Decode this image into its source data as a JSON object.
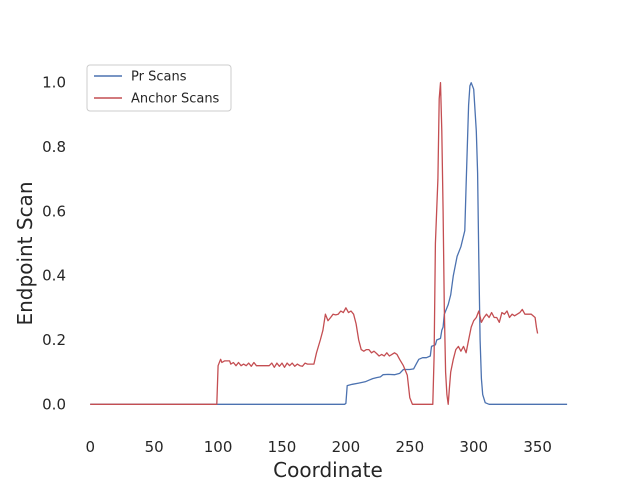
{
  "chart_data": {
    "type": "line",
    "title": "",
    "xlabel": "Coordinate",
    "ylabel": "Endpoint Scan",
    "xlim": [
      -8,
      380
    ],
    "ylim": [
      -0.08,
      1.08
    ],
    "x_ticks": [
      0,
      50,
      100,
      150,
      200,
      250,
      300,
      350
    ],
    "y_ticks": [
      0.0,
      0.2,
      0.4,
      0.6,
      0.8,
      1.0
    ],
    "grid": false,
    "legend_position": "top-left",
    "series": [
      {
        "name": "Pr Scans",
        "color": "#4c72b0",
        "points": [
          [
            0,
            0
          ],
          [
            199,
            0
          ],
          [
            200,
            0.003
          ],
          [
            201,
            0.058
          ],
          [
            205,
            0.062
          ],
          [
            210,
            0.066
          ],
          [
            215,
            0.07
          ],
          [
            218,
            0.075
          ],
          [
            221,
            0.08
          ],
          [
            224,
            0.083
          ],
          [
            227,
            0.085
          ],
          [
            229,
            0.092
          ],
          [
            233,
            0.093
          ],
          [
            238,
            0.092
          ],
          [
            242,
            0.096
          ],
          [
            245,
            0.108
          ],
          [
            250,
            0.108
          ],
          [
            253,
            0.11
          ],
          [
            255,
            0.125
          ],
          [
            257,
            0.14
          ],
          [
            260,
            0.145
          ],
          [
            263,
            0.145
          ],
          [
            266,
            0.15
          ],
          [
            267,
            0.18
          ],
          [
            270,
            0.185
          ],
          [
            271,
            0.2
          ],
          [
            274,
            0.205
          ],
          [
            275,
            0.23
          ],
          [
            276,
            0.24
          ],
          [
            277,
            0.28
          ],
          [
            280,
            0.31
          ],
          [
            282,
            0.34
          ],
          [
            284,
            0.4
          ],
          [
            287,
            0.46
          ],
          [
            290,
            0.49
          ],
          [
            293,
            0.54
          ],
          [
            294,
            0.68
          ],
          [
            295,
            0.8
          ],
          [
            296,
            0.93
          ],
          [
            297,
            0.99
          ],
          [
            298,
            1.0
          ],
          [
            300,
            0.98
          ],
          [
            302,
            0.85
          ],
          [
            303,
            0.72
          ],
          [
            304,
            0.45
          ],
          [
            305,
            0.2
          ],
          [
            306,
            0.08
          ],
          [
            307,
            0.03
          ],
          [
            309,
            0.005
          ],
          [
            312,
            0
          ],
          [
            373,
            0
          ]
        ]
      },
      {
        "name": "Anchor Scans",
        "color": "#c44e52",
        "points": [
          [
            0,
            0
          ],
          [
            99,
            0
          ],
          [
            100,
            0.12
          ],
          [
            102,
            0.14
          ],
          [
            103,
            0.13
          ],
          [
            105,
            0.135
          ],
          [
            109,
            0.135
          ],
          [
            110,
            0.125
          ],
          [
            112,
            0.13
          ],
          [
            114,
            0.12
          ],
          [
            116,
            0.13
          ],
          [
            118,
            0.12
          ],
          [
            120,
            0.125
          ],
          [
            122,
            0.12
          ],
          [
            124,
            0.128
          ],
          [
            126,
            0.118
          ],
          [
            128,
            0.13
          ],
          [
            130,
            0.12
          ],
          [
            135,
            0.12
          ],
          [
            140,
            0.12
          ],
          [
            142,
            0.128
          ],
          [
            144,
            0.115
          ],
          [
            146,
            0.128
          ],
          [
            148,
            0.118
          ],
          [
            150,
            0.128
          ],
          [
            152,
            0.115
          ],
          [
            154,
            0.128
          ],
          [
            156,
            0.12
          ],
          [
            158,
            0.128
          ],
          [
            160,
            0.118
          ],
          [
            162,
            0.125
          ],
          [
            164,
            0.12
          ],
          [
            166,
            0.118
          ],
          [
            168,
            0.128
          ],
          [
            170,
            0.125
          ],
          [
            175,
            0.125
          ],
          [
            177,
            0.16
          ],
          [
            180,
            0.2
          ],
          [
            182,
            0.23
          ],
          [
            184,
            0.28
          ],
          [
            186,
            0.26
          ],
          [
            188,
            0.27
          ],
          [
            190,
            0.28
          ],
          [
            192,
            0.278
          ],
          [
            194,
            0.28
          ],
          [
            196,
            0.29
          ],
          [
            198,
            0.285
          ],
          [
            200,
            0.3
          ],
          [
            202,
            0.285
          ],
          [
            204,
            0.29
          ],
          [
            206,
            0.28
          ],
          [
            208,
            0.25
          ],
          [
            210,
            0.2
          ],
          [
            212,
            0.17
          ],
          [
            214,
            0.165
          ],
          [
            216,
            0.17
          ],
          [
            218,
            0.17
          ],
          [
            220,
            0.16
          ],
          [
            222,
            0.165
          ],
          [
            224,
            0.158
          ],
          [
            226,
            0.15
          ],
          [
            228,
            0.155
          ],
          [
            230,
            0.15
          ],
          [
            232,
            0.16
          ],
          [
            234,
            0.15
          ],
          [
            236,
            0.155
          ],
          [
            238,
            0.16
          ],
          [
            240,
            0.155
          ],
          [
            242,
            0.14
          ],
          [
            245,
            0.12
          ],
          [
            248,
            0.09
          ],
          [
            250,
            0.02
          ],
          [
            252,
            0
          ],
          [
            256,
            0
          ],
          [
            260,
            0
          ],
          [
            264,
            0
          ],
          [
            268,
            0
          ],
          [
            269,
            0.15
          ],
          [
            270,
            0.5
          ],
          [
            272,
            0.7
          ],
          [
            273,
            0.95
          ],
          [
            274,
            1.0
          ],
          [
            275,
            0.85
          ],
          [
            276,
            0.6
          ],
          [
            277,
            0.3
          ],
          [
            278,
            0.1
          ],
          [
            279,
            0.03
          ],
          [
            280,
            0
          ],
          [
            281,
            0.05
          ],
          [
            282,
            0.1
          ],
          [
            284,
            0.14
          ],
          [
            286,
            0.17
          ],
          [
            288,
            0.18
          ],
          [
            290,
            0.165
          ],
          [
            292,
            0.18
          ],
          [
            294,
            0.16
          ],
          [
            296,
            0.2
          ],
          [
            298,
            0.24
          ],
          [
            300,
            0.26
          ],
          [
            302,
            0.27
          ],
          [
            304,
            0.29
          ],
          [
            306,
            0.255
          ],
          [
            308,
            0.27
          ],
          [
            310,
            0.28
          ],
          [
            312,
            0.27
          ],
          [
            314,
            0.285
          ],
          [
            316,
            0.27
          ],
          [
            318,
            0.27
          ],
          [
            320,
            0.255
          ],
          [
            322,
            0.285
          ],
          [
            324,
            0.28
          ],
          [
            326,
            0.29
          ],
          [
            328,
            0.27
          ],
          [
            330,
            0.28
          ],
          [
            332,
            0.275
          ],
          [
            334,
            0.28
          ],
          [
            336,
            0.285
          ],
          [
            338,
            0.295
          ],
          [
            340,
            0.28
          ],
          [
            345,
            0.28
          ],
          [
            348,
            0.27
          ],
          [
            349,
            0.24
          ],
          [
            350,
            0.22
          ]
        ]
      }
    ]
  }
}
